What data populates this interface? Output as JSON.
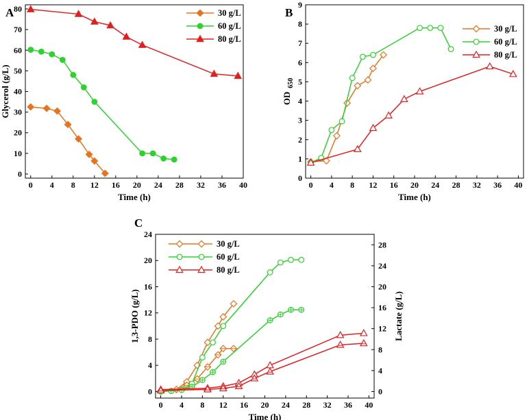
{
  "colors": {
    "orange": "#e8731e",
    "green": "#2ed22e",
    "red": "#e02020"
  },
  "chart_data": [
    {
      "panel": "A",
      "type": "line",
      "xlabel": "Time (h)",
      "ylabel": "Glycerol (g/L)",
      "xlim": [
        -1,
        40
      ],
      "ylim": [
        -2,
        82
      ],
      "xticks": [
        0,
        4,
        8,
        12,
        16,
        20,
        24,
        28,
        32,
        36,
        40
      ],
      "yticks": [
        0,
        10,
        20,
        30,
        40,
        50,
        60,
        70,
        80
      ],
      "legend_position": "top-right",
      "series": [
        {
          "name": "30 g/L",
          "color": "orange",
          "marker": "diamond",
          "filled": true,
          "x": [
            0,
            3,
            5,
            7,
            9,
            11,
            12,
            14
          ],
          "y": [
            32.5,
            31.8,
            30.5,
            24,
            17,
            9.5,
            6.3,
            0.3
          ]
        },
        {
          "name": "60 g/L",
          "color": "green",
          "marker": "circle",
          "filled": true,
          "x": [
            0,
            2,
            4,
            6,
            8,
            10,
            12,
            21,
            23,
            25,
            27
          ],
          "y": [
            60.2,
            59.3,
            58,
            55.3,
            48,
            42,
            35,
            10,
            10,
            7.5,
            7
          ]
        },
        {
          "name": "80 g/L",
          "color": "red",
          "marker": "triangle",
          "filled": true,
          "x": [
            0,
            9,
            12,
            15,
            18,
            21,
            34.5,
            39
          ],
          "y": [
            79.8,
            77.5,
            73.8,
            72,
            66.5,
            62.5,
            48.5,
            47.5
          ]
        }
      ]
    },
    {
      "panel": "B",
      "type": "line",
      "xlabel": "Time (h)",
      "ylabel": "OD",
      "ylabel_sub": "650",
      "xlim": [
        -1,
        41
      ],
      "ylim": [
        0,
        9
      ],
      "xticks": [
        0,
        4,
        8,
        12,
        16,
        20,
        24,
        28,
        32,
        36,
        40
      ],
      "yticks": [
        0,
        1,
        2,
        3,
        4,
        5,
        6,
        7,
        8,
        9
      ],
      "legend_position": "top-right",
      "series": [
        {
          "name": "30 g/L",
          "color": "orange",
          "marker": "diamond",
          "filled": false,
          "x": [
            0,
            3,
            5,
            7,
            9,
            11,
            12,
            14
          ],
          "y": [
            0.85,
            0.9,
            2.2,
            3.9,
            4.8,
            5.1,
            5.7,
            6.4
          ]
        },
        {
          "name": "60 g/L",
          "color": "green",
          "marker": "circle",
          "filled": false,
          "x": [
            0,
            2,
            4,
            6,
            8,
            10,
            12,
            21,
            23,
            25,
            27
          ],
          "y": [
            0.8,
            1.05,
            2.5,
            2.95,
            5.2,
            6.3,
            6.4,
            7.8,
            7.8,
            7.8,
            6.7
          ]
        },
        {
          "name": "80 g/L",
          "color": "red",
          "marker": "triangle",
          "filled": false,
          "x": [
            0,
            9,
            12,
            15,
            18,
            21,
            34.5,
            39
          ],
          "y": [
            0.8,
            1.5,
            2.6,
            3.25,
            4.1,
            4.5,
            5.8,
            5.4
          ]
        }
      ]
    },
    {
      "panel": "C",
      "type": "line",
      "xlabel": "Time (h)",
      "ylabel": "1,3-PDO (g/L)",
      "ylabel_right": "Lactate (g/L)",
      "xlim": [
        -1,
        41
      ],
      "ylim": [
        -1,
        24
      ],
      "ylim_right": [
        -1.25,
        30
      ],
      "xticks": [
        0,
        4,
        8,
        12,
        16,
        20,
        24,
        28,
        32,
        36,
        40
      ],
      "yticks": [
        0,
        4,
        8,
        12,
        16,
        20,
        24
      ],
      "yticks_right": [
        0,
        4,
        8,
        12,
        16,
        20,
        24,
        28
      ],
      "legend_position": "top-left",
      "legend": [
        {
          "name": "30 g/L",
          "color": "orange",
          "marker": "diamond"
        },
        {
          "name": "60 g/L",
          "color": "green",
          "marker": "circle"
        },
        {
          "name": "80 g/L",
          "color": "red",
          "marker": "triangle"
        }
      ],
      "series": [
        {
          "name": "30 g/L PDO",
          "color": "orange",
          "marker": "diamond",
          "axis": "left",
          "x": [
            0,
            3,
            5,
            7,
            9,
            11,
            12,
            14
          ],
          "y": [
            0.1,
            0.3,
            1.5,
            4,
            7.5,
            10,
            11.4,
            13.4
          ]
        },
        {
          "name": "30 g/L Lactate",
          "color": "orange",
          "marker": "diamond-dash",
          "axis": "right",
          "x": [
            0,
            3,
            5,
            7,
            9,
            11,
            12,
            14
          ],
          "y": [
            0.1,
            0.4,
            1.2,
            2.4,
            4.7,
            7,
            8.2,
            8.2
          ]
        },
        {
          "name": "60 g/L PDO",
          "color": "green",
          "marker": "circle",
          "axis": "left",
          "x": [
            0,
            2,
            4,
            6,
            8,
            10,
            12,
            21,
            23,
            25,
            27
          ],
          "y": [
            0,
            0.1,
            0.3,
            1.2,
            5.2,
            7.5,
            10,
            18.2,
            19.7,
            20.1,
            20.1
          ]
        },
        {
          "name": "60 g/L Lactate",
          "color": "green",
          "marker": "circle-cross",
          "axis": "right",
          "x": [
            0,
            2,
            4,
            6,
            8,
            10,
            12,
            21,
            23,
            25,
            27
          ],
          "y": [
            0,
            0.1,
            0.3,
            0.9,
            2.2,
            3.7,
            5.7,
            13.6,
            14.7,
            15.6,
            15.6
          ]
        },
        {
          "name": "80 g/L PDO",
          "color": "red",
          "marker": "triangle",
          "axis": "left",
          "x": [
            0,
            9,
            12,
            15,
            18,
            21,
            34.5,
            39
          ],
          "y": [
            0.3,
            0.5,
            0.8,
            1.3,
            2.6,
            4,
            8.6,
            8.9
          ]
        },
        {
          "name": "80 g/L Lactate",
          "color": "red",
          "marker": "triangle-dash",
          "axis": "right",
          "x": [
            0,
            9,
            12,
            15,
            18,
            21,
            34.5,
            39
          ],
          "y": [
            0.2,
            0.4,
            0.6,
            1,
            2.5,
            3.8,
            8.9,
            9.2
          ]
        }
      ]
    }
  ]
}
